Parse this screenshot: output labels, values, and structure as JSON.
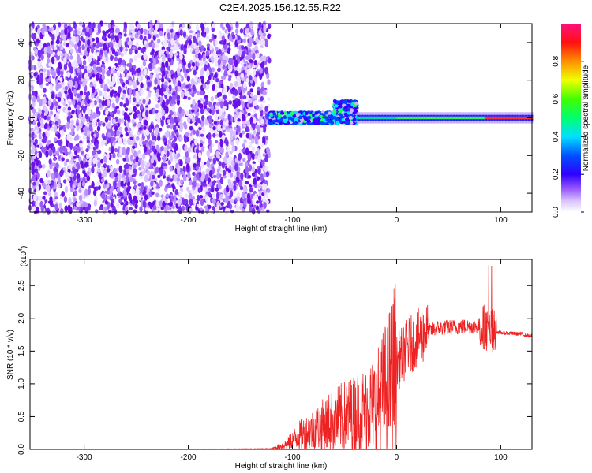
{
  "title": "C2E4.2025.156.12.55.R22",
  "chart_data": [
    {
      "type": "heatmap",
      "xlabel": "Height of straight line (km)",
      "ylabel": "Frequency (Hz)",
      "xlim": [
        -352,
        130
      ],
      "ylim": [
        -50,
        50
      ],
      "x_ticks": [
        -300,
        -200,
        -100,
        0,
        100
      ],
      "y_ticks": [
        -40,
        -20,
        0,
        20,
        40
      ],
      "colorbar": {
        "label": "Normalized spectral amplitude",
        "range": [
          0,
          1
        ],
        "ticks": [
          "0.0",
          "0.2",
          "0.4",
          "0.6",
          "0.8"
        ],
        "tick_values": [
          0.0,
          0.2,
          0.4,
          0.6,
          0.8
        ],
        "colors": [
          "#ffffff",
          "#b98cff",
          "#7000ff",
          "#0000ff",
          "#00ffff",
          "#00ff00",
          "#ffff00",
          "#ff7f00",
          "#ff0000",
          "#ff1c7f"
        ]
      },
      "features": [
        {
          "desc_x_range": [
            -352,
            -122
          ],
          "frequency_range": [
            -50,
            50
          ],
          "amplitude": 0.1
        },
        {
          "desc_x_range": [
            -122,
            -38
          ],
          "frequency_range": [
            -10,
            10
          ],
          "amplitude": 0.35
        },
        {
          "desc_x_range": [
            -38,
            130
          ],
          "frequency_center": 0,
          "amplitude": 0.85
        }
      ]
    },
    {
      "type": "line",
      "xlabel": "Height of straight line (km)",
      "ylabel": "SNR (10 * v/v)",
      "y_multiplier": "(x10^4)",
      "y_multiplier_base": "(x10",
      "y_multiplier_exp": "4",
      "y_multiplier_close": ")",
      "xlim": [
        -352,
        130
      ],
      "ylim": [
        0,
        2.9
      ],
      "x_ticks": [
        -300,
        -200,
        -100,
        0,
        100
      ],
      "y_ticks": [
        "0.0",
        "0.5",
        "1.0",
        "1.5",
        "2.0",
        "2.5"
      ],
      "series_color": "#ee2222",
      "envelope": {
        "x": [
          -352,
          -300,
          -200,
          -120,
          -105,
          -95,
          -80,
          -60,
          -40,
          -20,
          -10,
          0,
          10,
          20,
          30,
          40,
          50,
          60,
          70,
          80,
          85,
          90,
          93,
          95,
          100,
          110,
          120,
          130
        ],
        "y": [
          0.0,
          0.0,
          0.0,
          0.01,
          0.08,
          0.2,
          0.3,
          0.45,
          0.55,
          0.7,
          0.95,
          1.3,
          1.55,
          1.7,
          1.8,
          1.85,
          1.86,
          1.87,
          1.88,
          1.88,
          1.87,
          1.8,
          1.8,
          1.8,
          1.78,
          1.77,
          1.76,
          1.72
        ]
      }
    }
  ]
}
